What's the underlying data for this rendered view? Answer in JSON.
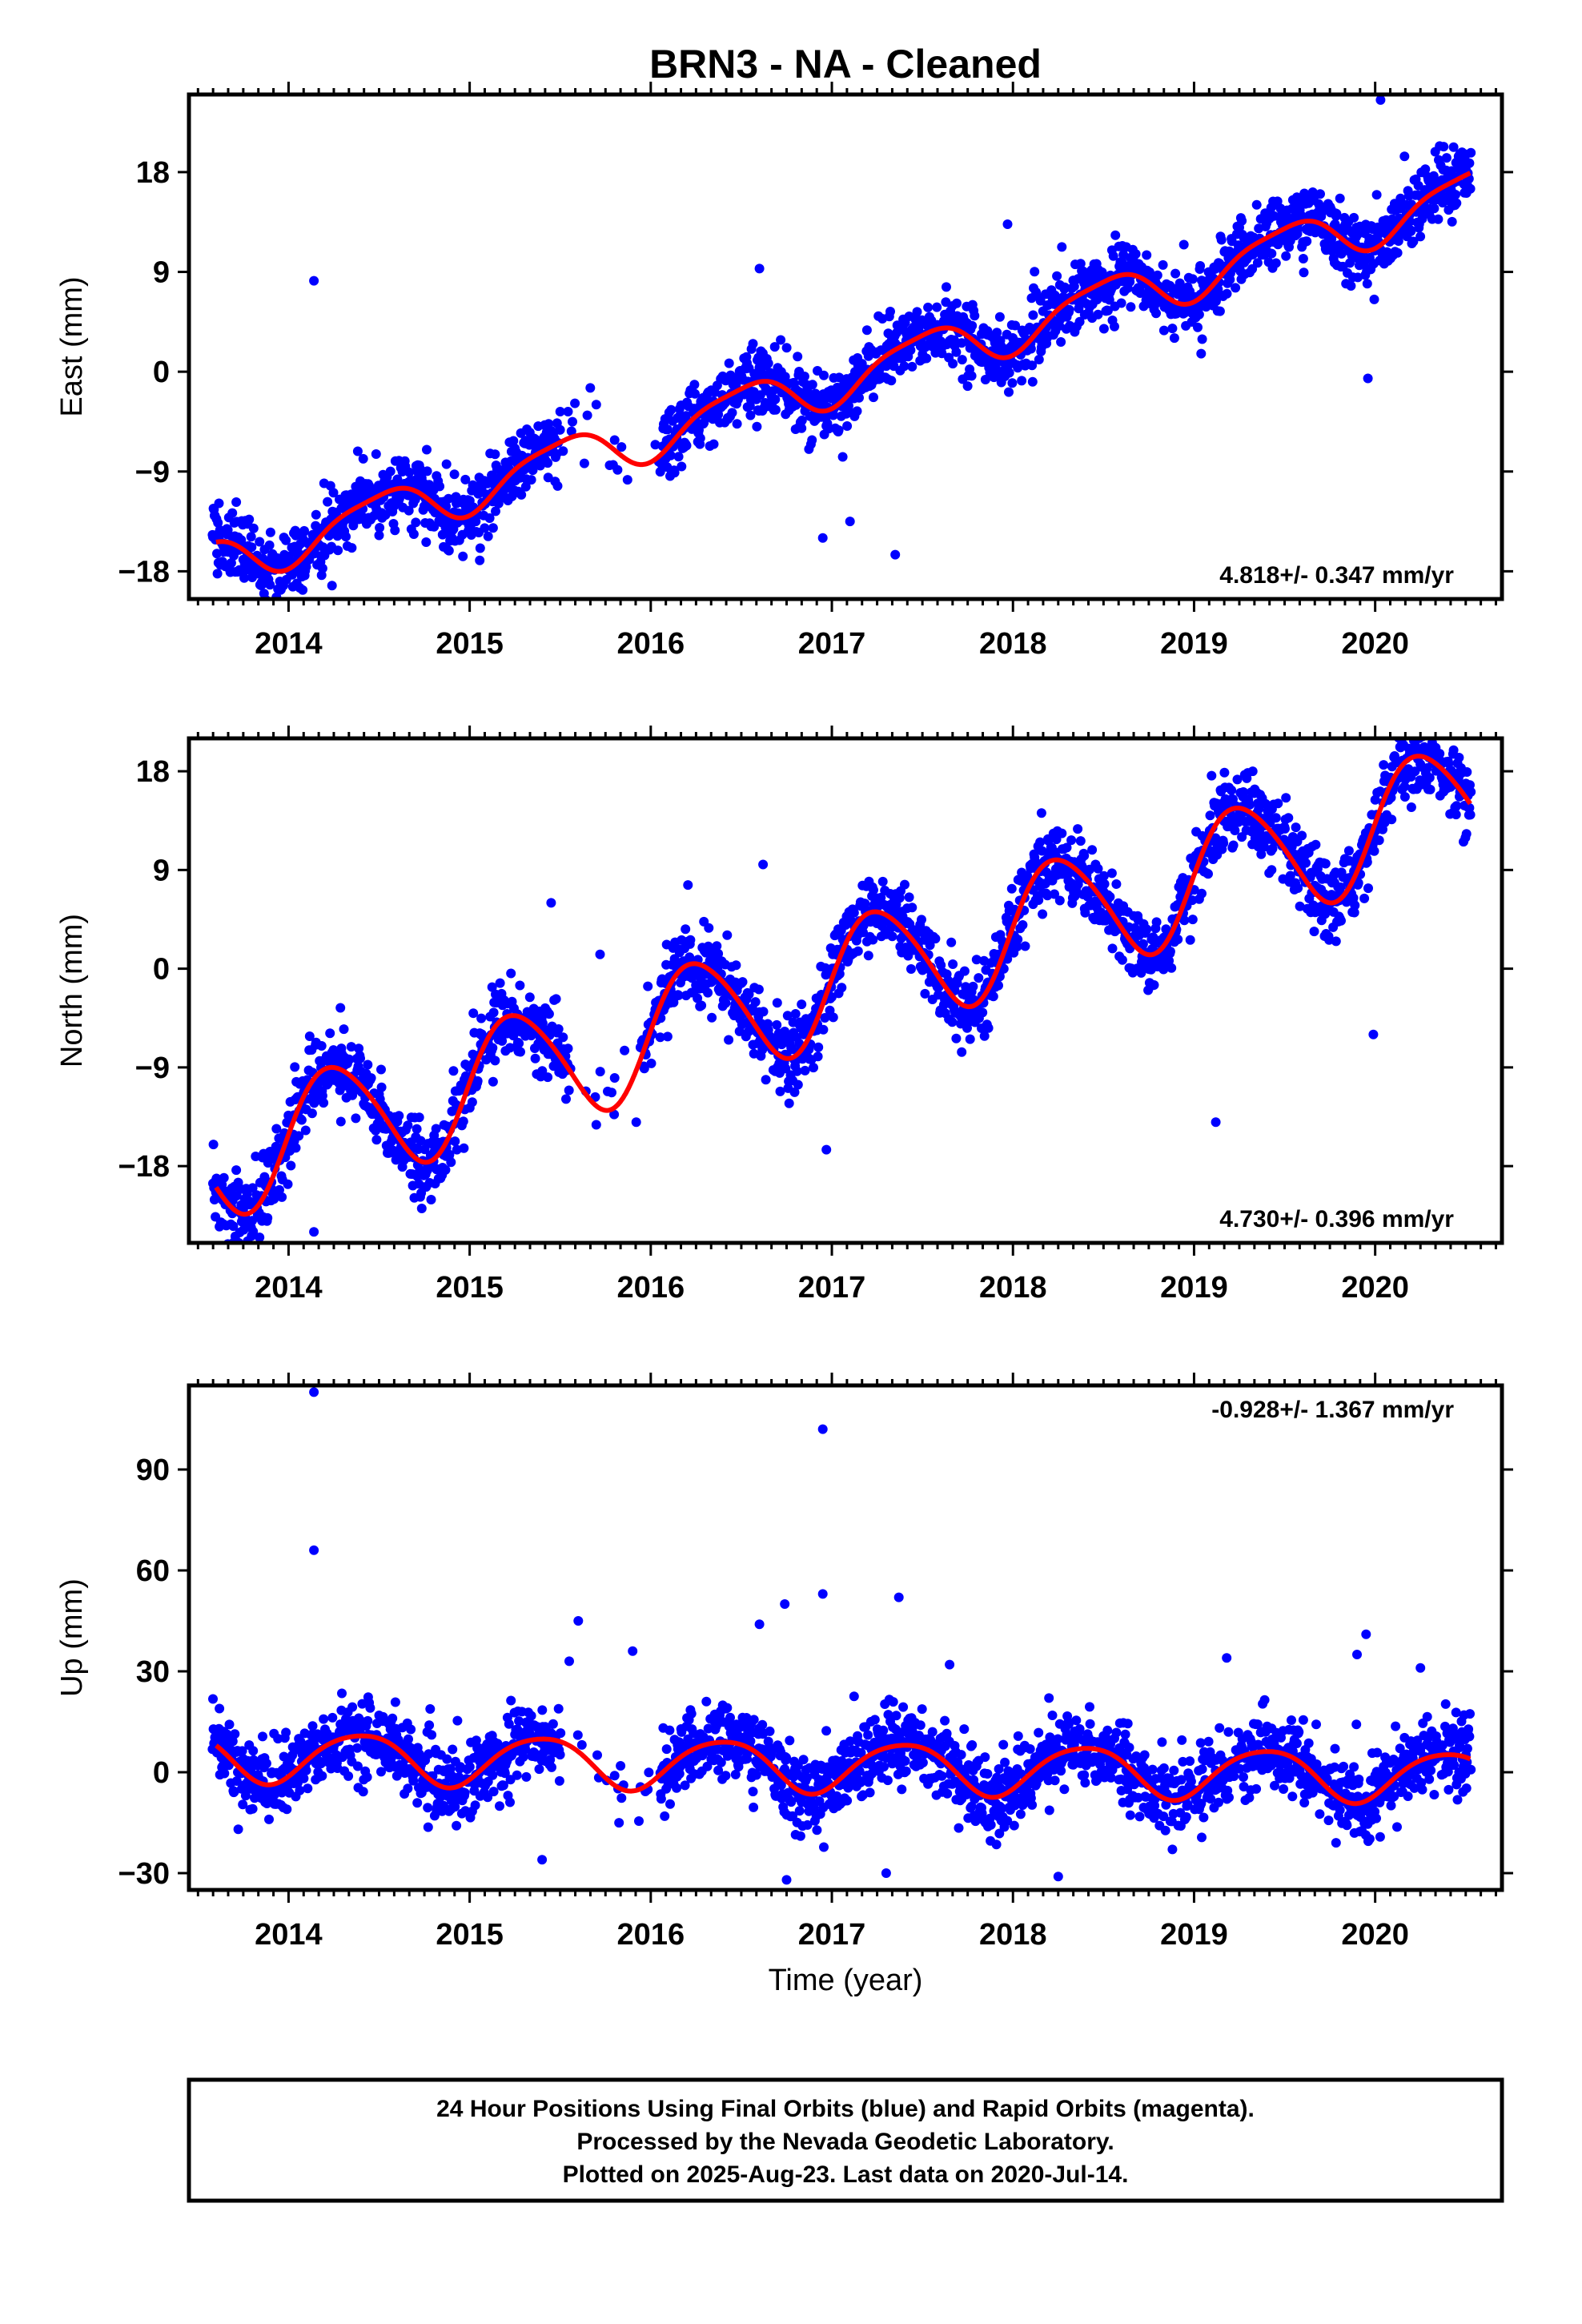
{
  "title": "BRN3  - NA - Cleaned",
  "xlabel": "Time (year)",
  "footer_lines": [
    "24 Hour Positions Using Final Orbits (blue) and Rapid Orbits (magenta).",
    "Processed by the Nevada Geodetic Laboratory.",
    "Plotted on 2025-Aug-23. Last data on 2020-Jul-14."
  ],
  "colors": {
    "points": "#0000ff",
    "model": "#ff0000",
    "frame": "#000000"
  },
  "chart_data": [
    {
      "type": "scatter",
      "component": "east",
      "ylabel": "East (mm)",
      "rate_label": "4.818+/- 0.347 mm/yr",
      "rate_position": "bottom-right",
      "xlim": [
        2013.45,
        2020.7
      ],
      "ylim": [
        -20.5,
        25
      ],
      "xticks": [
        2014,
        2015,
        2016,
        2017,
        2018,
        2019,
        2020
      ],
      "yticks": [
        -18,
        -9,
        0,
        9,
        18
      ],
      "ytick_labels": [
        "−18",
        "−9",
        "0",
        "9",
        "18"
      ],
      "model": {
        "rate": 4.818,
        "offset": -17.2,
        "annual_amp": 2.1,
        "annual_phase": -1.57,
        "semiannual_amp": 0.5,
        "semiannual_phase": -1.0
      },
      "scatter_sigma": 1.5,
      "gaps": [
        [
          2015.5,
          2016.05
        ]
      ],
      "outliers": [
        [
          2014.14,
          8.2
        ],
        [
          2016.6,
          9.3
        ],
        [
          2017.97,
          13.3
        ],
        [
          2020.03,
          24.5
        ],
        [
          2019.96,
          -0.6
        ],
        [
          2016.95,
          -15.0
        ],
        [
          2017.35,
          -16.5
        ],
        [
          2017.1,
          -13.5
        ],
        [
          2015.5,
          -3.6
        ]
      ]
    },
    {
      "type": "scatter",
      "component": "north",
      "ylabel": "North (mm)",
      "rate_label": "4.730+/- 0.396 mm/yr",
      "rate_position": "bottom-right",
      "xlim": [
        2013.45,
        2020.7
      ],
      "ylim": [
        -25,
        21
      ],
      "xticks": [
        2014,
        2015,
        2016,
        2017,
        2018,
        2019,
        2020
      ],
      "yticks": [
        -18,
        -9,
        0,
        9,
        18
      ],
      "ytick_labels": [
        "−18",
        "−9",
        "0",
        "9",
        "18"
      ],
      "model": {
        "rate": 4.73,
        "offset": -17.3,
        "annual_amp": 5.5,
        "annual_phase": 0.0,
        "semiannual_amp": 0.6,
        "semiannual_phase": 0.5
      },
      "scatter_sigma": 1.7,
      "gaps": [
        [
          2015.55,
          2015.95
        ]
      ],
      "outliers": [
        [
          2014.14,
          -24.0
        ],
        [
          2015.45,
          6.0
        ],
        [
          2015.72,
          1.3
        ],
        [
          2019.12,
          -14.0
        ],
        [
          2019.99,
          -6.0
        ],
        [
          2016.62,
          9.5
        ],
        [
          2016.97,
          -16.5
        ],
        [
          2015.92,
          -14.0
        ]
      ]
    },
    {
      "type": "scatter",
      "component": "up",
      "ylabel": "Up (mm)",
      "rate_label": "-0.928+/- 1.367 mm/yr",
      "rate_position": "top-right",
      "xlim": [
        2013.45,
        2020.7
      ],
      "ylim": [
        -35,
        115
      ],
      "xticks": [
        2014,
        2015,
        2016,
        2017,
        2018,
        2019,
        2020
      ],
      "yticks": [
        -30,
        0,
        30,
        60,
        90
      ],
      "ytick_labels": [
        "−30",
        "0",
        "30",
        "60",
        "90"
      ],
      "model": {
        "rate": -0.93,
        "offset": 5.0,
        "annual_amp": 7.5,
        "annual_phase": -0.9,
        "semiannual_amp": 1.0,
        "semiannual_phase": 0.0
      },
      "scatter_sigma": 5.5,
      "gaps": [
        [
          2015.5,
          2016.05
        ]
      ],
      "outliers": [
        [
          2014.14,
          113
        ],
        [
          2014.14,
          66
        ],
        [
          2016.95,
          102
        ],
        [
          2016.95,
          53
        ],
        [
          2017.37,
          52
        ],
        [
          2016.74,
          50
        ],
        [
          2016.6,
          44
        ],
        [
          2015.6,
          45
        ],
        [
          2015.9,
          36
        ],
        [
          2019.95,
          41
        ],
        [
          2019.9,
          35
        ],
        [
          2020.25,
          31
        ],
        [
          2017.65,
          32
        ],
        [
          2019.18,
          34
        ],
        [
          2015.4,
          -26
        ],
        [
          2016.75,
          -32
        ],
        [
          2018.25,
          -31
        ],
        [
          2017.3,
          -30
        ],
        [
          2015.55,
          33
        ]
      ]
    }
  ]
}
